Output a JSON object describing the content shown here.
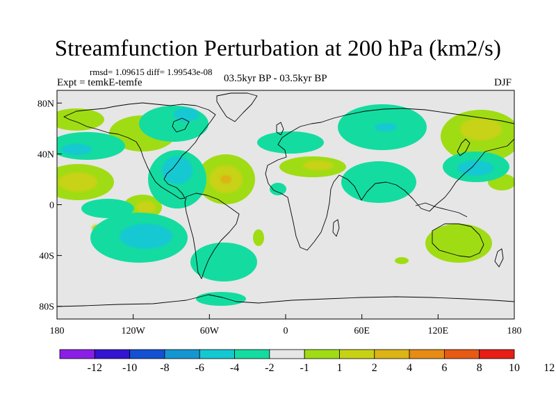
{
  "title": "Streamfunction Perturbation at 200 hPa (km2/s)",
  "stats_line": "rmsd= 1.09615  diff= 1.99543e-08",
  "experiment_line": "Expt = temkE-temfe",
  "period_line": "03.5kyr BP - 03.5kyr BP",
  "season": "DJF",
  "axes": {
    "lat_ticks": [
      {
        "label": "80N",
        "lat": 80
      },
      {
        "label": "40N",
        "lat": 40
      },
      {
        "label": "0",
        "lat": 0
      },
      {
        "label": "40S",
        "lat": -40
      },
      {
        "label": "80S",
        "lat": -80
      }
    ],
    "lon_ticks": [
      {
        "label": "180",
        "lon": -180
      },
      {
        "label": "120W",
        "lon": -120
      },
      {
        "label": "60W",
        "lon": -60
      },
      {
        "label": "0",
        "lon": 0
      },
      {
        "label": "60E",
        "lon": 60
      },
      {
        "label": "120E",
        "lon": 120
      },
      {
        "label": "180",
        "lon": 180
      }
    ]
  },
  "colorbar": {
    "colors": [
      "#8a1ee6",
      "#3214d2",
      "#1450d2",
      "#1496d2",
      "#14c8d2",
      "#14dca0",
      "#e6e6e6",
      "#a0dc14",
      "#c8d214",
      "#dcb414",
      "#e68c14",
      "#e65a14",
      "#e61e14"
    ],
    "labels": [
      "-12",
      "-10",
      "-8",
      "-6",
      "-4",
      "-2",
      "-1",
      "1",
      "2",
      "4",
      "6",
      "8",
      "10",
      "12"
    ]
  },
  "colors": {
    "ocean_land_background": "#e6e6e6",
    "coastline": "#000000"
  }
}
